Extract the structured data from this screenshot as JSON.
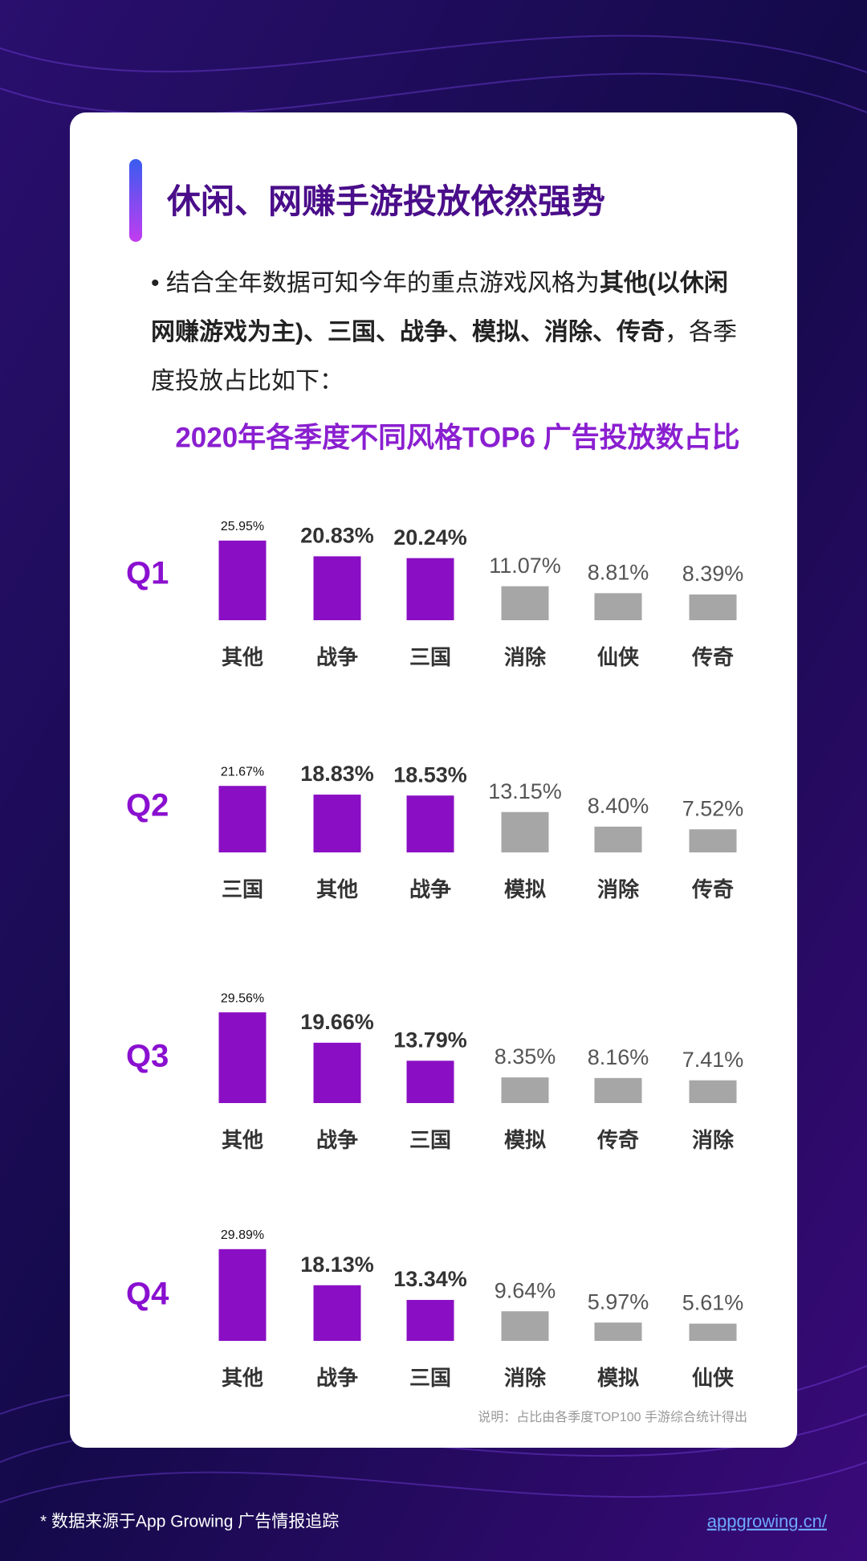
{
  "title": "休闲、网赚手游投放依然强势",
  "bullet": {
    "text_before": "• 结合全年数据可知今年的重点游戏风格为",
    "text_bold": "其他(以休闲网赚游戏为主)、三国、战争、模拟、消除、传奇",
    "text_after": "，各季度投放占比如下："
  },
  "chart_heading": "2020年各季度不同风格TOP6 广告投放数占比",
  "note": "说明：占比由各季度TOP100  手游综合统计得出",
  "footer_source": "* 数据来源于App Growing 广告情报追踪",
  "footer_url": "appgrowing.cn/",
  "chart_data": [
    {
      "type": "bar",
      "title": "Q1",
      "categories": [
        "其他",
        "战争",
        "三国",
        "消除",
        "仙侠",
        "传奇"
      ],
      "values": [
        25.95,
        20.83,
        20.24,
        11.07,
        8.81,
        8.39
      ],
      "value_labels": [
        "25.95%",
        "20.83%",
        "20.24%",
        "11.07%",
        "8.81%",
        "8.39%"
      ],
      "colors": [
        "#8a0fc4",
        "#8a0fc4",
        "#8a0fc4",
        "#a6a6a6",
        "#a6a6a6",
        "#a6a6a6"
      ]
    },
    {
      "type": "bar",
      "title": "Q2",
      "categories": [
        "三国",
        "其他",
        "战争",
        "模拟",
        "消除",
        "传奇"
      ],
      "values": [
        21.67,
        18.83,
        18.53,
        13.15,
        8.4,
        7.52
      ],
      "value_labels": [
        "21.67%",
        "18.83%",
        "18.53%",
        "13.15%",
        "8.40%",
        "7.52%"
      ],
      "colors": [
        "#8a0fc4",
        "#8a0fc4",
        "#8a0fc4",
        "#a6a6a6",
        "#a6a6a6",
        "#a6a6a6"
      ]
    },
    {
      "type": "bar",
      "title": "Q3",
      "categories": [
        "其他",
        "战争",
        "三国",
        "模拟",
        "传奇",
        "消除"
      ],
      "values": [
        29.56,
        19.66,
        13.79,
        8.35,
        8.16,
        7.41
      ],
      "value_labels": [
        "29.56%",
        "19.66%",
        "13.79%",
        "8.35%",
        "8.16%",
        "7.41%"
      ],
      "colors": [
        "#8a0fc4",
        "#8a0fc4",
        "#8a0fc4",
        "#a6a6a6",
        "#a6a6a6",
        "#a6a6a6"
      ]
    },
    {
      "type": "bar",
      "title": "Q4",
      "categories": [
        "其他",
        "战争",
        "三国",
        "消除",
        "模拟",
        "仙侠"
      ],
      "values": [
        29.89,
        18.13,
        13.34,
        9.64,
        5.97,
        5.61
      ],
      "value_labels": [
        "29.89%",
        "18.13%",
        "13.34%",
        "9.64%",
        "5.97%",
        "5.61%"
      ],
      "colors": [
        "#8a0fc4",
        "#8a0fc4",
        "#8a0fc4",
        "#a6a6a6",
        "#a6a6a6",
        "#a6a6a6"
      ]
    }
  ]
}
